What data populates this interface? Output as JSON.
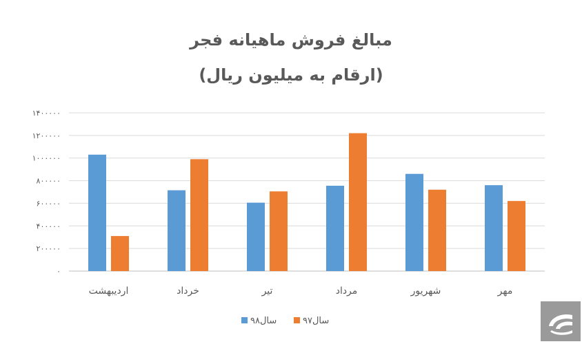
{
  "chart_data": {
    "type": "bar",
    "title": "مبالغ فروش ماهیانه فجر",
    "subtitle": "(ارقام به میلیون ریال)",
    "categories": [
      "اردیبهشت",
      "خرداد",
      "تیر",
      "مرداد",
      "شهریور",
      "مهر"
    ],
    "series": [
      {
        "name": "سال۹۸",
        "color": "#5b9bd5",
        "values": [
          1030000,
          715000,
          605000,
          755000,
          860000,
          760000
        ]
      },
      {
        "name": "سال۹۷",
        "color": "#ed7d31",
        "values": [
          310000,
          990000,
          705000,
          1220000,
          720000,
          620000
        ]
      }
    ],
    "ylim": [
      0,
      1400000
    ],
    "yticks": [
      0,
      200000,
      400000,
      600000,
      800000,
      1000000,
      1200000,
      1400000
    ],
    "ytick_labels": [
      "۰",
      "۲۰۰۰۰۰",
      "۴۰۰۰۰۰",
      "۶۰۰۰۰۰",
      "۸۰۰۰۰۰",
      "۱۰۰۰۰۰۰",
      "۱۲۰۰۰۰۰",
      "۱۴۰۰۰۰۰"
    ],
    "grid": true,
    "legend_position": "bottom-center",
    "xlabel": "",
    "ylabel": ""
  },
  "logo": {
    "icon": "fajr-logo-icon",
    "color": "#9a9a9a"
  }
}
